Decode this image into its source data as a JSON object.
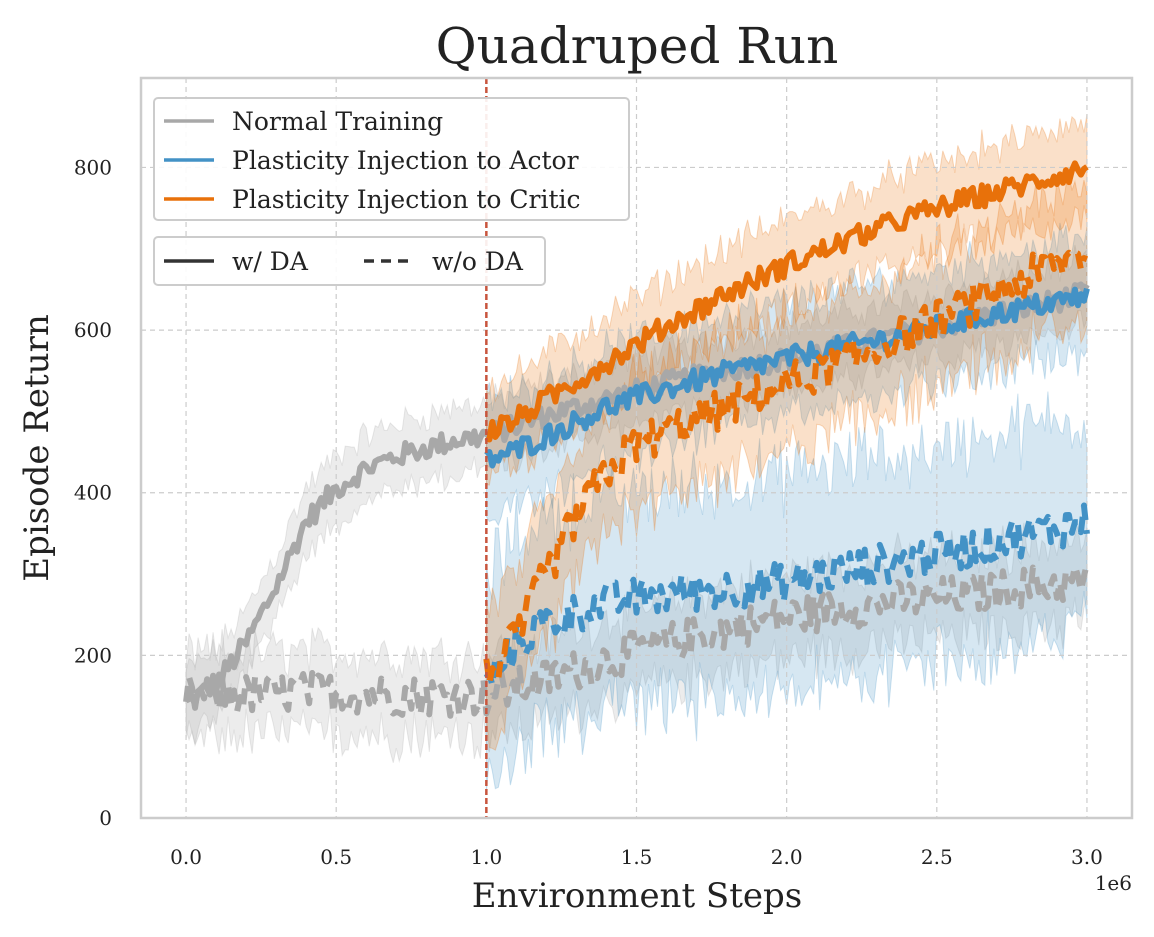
{
  "chart_data": {
    "type": "line",
    "title": "Quadruped Run",
    "xlabel": "Environment Steps",
    "ylabel": "Episode Return",
    "x_scale_label": "1e6",
    "xlim": [
      -0.15,
      3.15
    ],
    "ylim": [
      0,
      910
    ],
    "xticks": [
      0.0,
      0.5,
      1.0,
      1.5,
      2.0,
      2.5,
      3.0
    ],
    "xtick_labels": [
      "0.0",
      "0.5",
      "1.0",
      "1.5",
      "2.0",
      "2.5",
      "3.0"
    ],
    "yticks": [
      0,
      200,
      400,
      600,
      800
    ],
    "ytick_labels": [
      "0",
      "200",
      "400",
      "600",
      "800"
    ],
    "grid": true,
    "vline": {
      "x": 1.0,
      "color": "#c8553d",
      "style": "dashed"
    },
    "legend_placement": "top-left",
    "legend_methods": [
      {
        "label": "Normal Training",
        "color": "#a8a8a8"
      },
      {
        "label": "Plasticity Injection to Actor",
        "color": "#4392c6"
      },
      {
        "label": "Plasticity Injection to Critic",
        "color": "#e8710a"
      }
    ],
    "legend_styles": [
      {
        "label": "w/ DA",
        "dash": "solid"
      },
      {
        "label": "w/o DA",
        "dash": "dashed"
      }
    ],
    "series": [
      {
        "method": "Normal Training",
        "style": "w/ DA",
        "color": "#a8a8a8",
        "dash": "solid",
        "x": [
          0.0,
          0.1,
          0.2,
          0.3,
          0.4,
          0.5,
          0.6,
          0.7,
          0.8,
          0.9,
          1.0,
          1.2,
          1.4,
          1.6,
          1.8,
          2.0,
          2.2,
          2.4,
          2.6,
          2.8,
          3.0
        ],
        "y": [
          140,
          165,
          215,
          285,
          365,
          405,
          430,
          445,
          455,
          465,
          470,
          495,
          515,
          535,
          550,
          565,
          580,
          595,
          612,
          628,
          645
        ],
        "band": 40
      },
      {
        "method": "Normal Training",
        "style": "w/o DA",
        "color": "#a8a8a8",
        "dash": "dashed",
        "x": [
          0.0,
          0.2,
          0.4,
          0.6,
          0.8,
          1.0,
          1.2,
          1.4,
          1.6,
          1.8,
          2.0,
          2.2,
          2.4,
          2.6,
          2.8,
          3.0
        ],
        "y": [
          150,
          152,
          155,
          153,
          150,
          150,
          170,
          195,
          215,
          232,
          248,
          258,
          268,
          275,
          285,
          292
        ],
        "band": 50
      },
      {
        "method": "Plasticity Injection to Actor",
        "style": "w/ DA",
        "color": "#4392c6",
        "dash": "solid",
        "x": [
          1.0,
          1.1,
          1.2,
          1.4,
          1.6,
          1.8,
          2.0,
          2.2,
          2.4,
          2.6,
          2.8,
          3.0
        ],
        "y": [
          440,
          452,
          470,
          505,
          528,
          548,
          565,
          580,
          595,
          612,
          628,
          642
        ],
        "band": 70
      },
      {
        "method": "Plasticity Injection to Actor",
        "style": "w/o DA",
        "color": "#4392c6",
        "dash": "dashed",
        "x": [
          1.0,
          1.1,
          1.2,
          1.4,
          1.6,
          1.8,
          2.0,
          2.2,
          2.4,
          2.6,
          2.8,
          3.0
        ],
        "y": [
          165,
          215,
          240,
          265,
          275,
          282,
          290,
          305,
          318,
          332,
          348,
          365
        ],
        "band": 130
      },
      {
        "method": "Plasticity Injection to Critic",
        "style": "w/ DA",
        "color": "#e8710a",
        "dash": "solid",
        "x": [
          1.0,
          1.1,
          1.2,
          1.4,
          1.6,
          1.8,
          2.0,
          2.2,
          2.4,
          2.6,
          2.8,
          3.0
        ],
        "y": [
          475,
          490,
          515,
          560,
          605,
          645,
          680,
          710,
          738,
          760,
          780,
          800
        ],
        "band": 55
      },
      {
        "method": "Plasticity Injection to Critic",
        "style": "w/o DA",
        "color": "#e8710a",
        "dash": "dashed",
        "x": [
          1.0,
          1.1,
          1.15,
          1.2,
          1.3,
          1.4,
          1.5,
          1.6,
          1.8,
          2.0,
          2.2,
          2.4,
          2.6,
          2.8,
          3.0
        ],
        "y": [
          175,
          220,
          265,
          300,
          370,
          425,
          460,
          475,
          505,
          535,
          560,
          595,
          628,
          665,
          695
        ],
        "band": 80
      }
    ]
  }
}
